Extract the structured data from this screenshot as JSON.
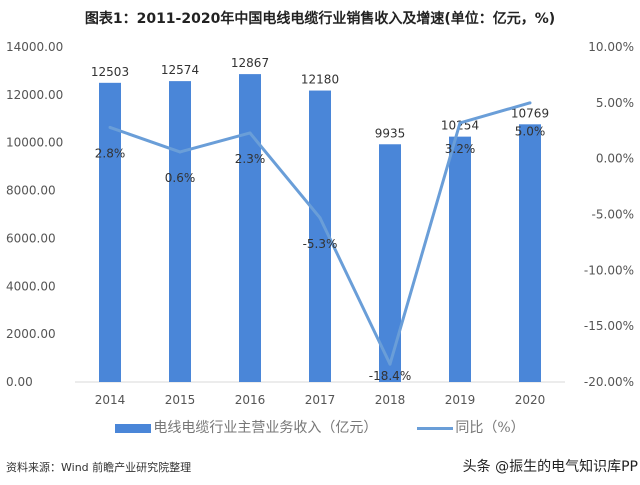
{
  "chart_data": {
    "type": "bar+line",
    "title": "图表1：2011-2020年中国电线电缆行业销售收入及增速(单位：亿元，%)",
    "categories": [
      "2014",
      "2015",
      "2016",
      "2017",
      "2018",
      "2019",
      "2020"
    ],
    "series": [
      {
        "name": "电线电缆行业主营业务收入（亿元）",
        "type": "bar",
        "axis": "left",
        "values": [
          12503,
          12574,
          12867,
          12180,
          9935,
          10254,
          10769
        ],
        "color": "#4a86d8"
      },
      {
        "name": "同比（%）",
        "type": "line",
        "axis": "right",
        "values": [
          2.8,
          0.6,
          2.3,
          -5.3,
          -18.4,
          3.2,
          5.0
        ],
        "labels": [
          "2.8%",
          "0.6%",
          "2.3%",
          "-5.3%",
          "-18.4%",
          "3.2%",
          "5.0%"
        ],
        "color": "#6a9ed8"
      }
    ],
    "left_axis": {
      "ylim": [
        0,
        14000
      ],
      "ticks": [
        "0.00",
        "2000.00",
        "4000.00",
        "6000.00",
        "8000.00",
        "10000.00",
        "12000.00",
        "14000.00"
      ]
    },
    "right_axis": {
      "ylim": [
        -20,
        10
      ],
      "ticks": [
        "-20.00%",
        "-15.00%",
        "-10.00%",
        "-5.00%",
        "0.00%",
        "5.00%",
        "10.00%"
      ]
    },
    "grid": false,
    "legend_position": "bottom"
  },
  "source": "资料来源：Wind 前瞻产业研究院整理",
  "watermark": "头条 @振生的电气知识库PP"
}
